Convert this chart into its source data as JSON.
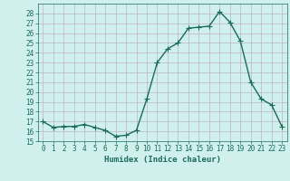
{
  "x": [
    0,
    1,
    2,
    3,
    4,
    5,
    6,
    7,
    8,
    9,
    10,
    11,
    12,
    13,
    14,
    15,
    16,
    17,
    18,
    19,
    20,
    21,
    22,
    23
  ],
  "y": [
    17.0,
    16.4,
    16.5,
    16.5,
    16.7,
    16.4,
    16.1,
    15.5,
    15.6,
    16.1,
    19.3,
    23.0,
    24.4,
    25.0,
    26.5,
    26.6,
    26.7,
    28.2,
    27.1,
    25.2,
    21.0,
    19.3,
    18.7,
    16.5
  ],
  "line_color": "#1a6b5a",
  "marker": "+",
  "marker_size": 4,
  "bg_color": "#cff0ec",
  "grid_color": "#c0b0c8",
  "xlabel": "Humidex (Indice chaleur)",
  "ylim": [
    15,
    29
  ],
  "xlim": [
    -0.5,
    23.5
  ],
  "yticks": [
    15,
    16,
    17,
    18,
    19,
    20,
    21,
    22,
    23,
    24,
    25,
    26,
    27,
    28
  ],
  "xticks": [
    0,
    1,
    2,
    3,
    4,
    5,
    6,
    7,
    8,
    9,
    10,
    11,
    12,
    13,
    14,
    15,
    16,
    17,
    18,
    19,
    20,
    21,
    22,
    23
  ],
  "tick_fontsize": 5.5,
  "label_fontsize": 6.5,
  "line_width": 1.0
}
